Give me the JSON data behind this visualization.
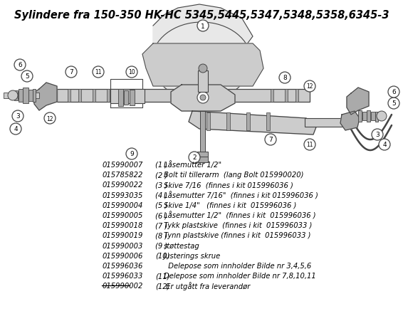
{
  "title": "Sylindere fra 150-350 HK-HC 5345,5445,5347,5348,5358,6345-3",
  "background_color": "#ffffff",
  "title_fontsize": 10.5,
  "parts_list": [
    {
      "code": "015990007",
      "num": "(1 )",
      "desc": "Låsemutter 1/2\"",
      "strikethrough": false
    },
    {
      "code": "015785822",
      "num": "(2 )",
      "desc": "Bolt til tillerarm  (lang Bolt 015990020)",
      "strikethrough": false
    },
    {
      "code": "015990022",
      "num": "(3 )",
      "desc": "Skive 7/16  (finnes i kit 015996036 )",
      "strikethrough": false
    },
    {
      "code": "015993035",
      "num": "(4 )",
      "desc": "Låsemutter 7/16\"  (finnes i kit 015996036 )",
      "strikethrough": false
    },
    {
      "code": "015990004",
      "num": "(5 )",
      "desc": "Skive 1/4\"   (finnes i kit  015996036 )",
      "strikethrough": false
    },
    {
      "code": "015990005",
      "num": "(6 )",
      "desc": "Låsemutter 1/2\"  (finnes i kit  015996036 )",
      "strikethrough": false
    },
    {
      "code": "015990018",
      "num": "(7 )",
      "desc": "Tykk plastskive  (finnes i kit  015996033 )",
      "strikethrough": false
    },
    {
      "code": "015990019",
      "num": "(8 )",
      "desc": "Tynn plastskive (finnes i kit  015996033 )",
      "strikethrough": false
    },
    {
      "code": "015990003",
      "num": "(9 )",
      "desc": "støttestag",
      "strikethrough": false
    },
    {
      "code": "015990006",
      "num": "(10)",
      "desc": "Justerings skrue",
      "strikethrough": false
    },
    {
      "code": "015996036",
      "num": "",
      "desc": "  Delepose som innholder Bilde nr 3,4,5,6",
      "strikethrough": false
    },
    {
      "code": "015996033",
      "num": "(11)",
      "desc": "Delepose som innholder Bilde nr 7,8,10,11",
      "strikethrough": false
    },
    {
      "code": "015990002",
      "num": "(12)",
      "desc": " Er utgått fra leverandør",
      "strikethrough": true
    }
  ],
  "diagram": {
    "bg_color": "#ffffff",
    "line_color": "#444444",
    "fill_light": "#e8e8e8",
    "fill_mid": "#cccccc",
    "fill_dark": "#aaaaaa"
  }
}
